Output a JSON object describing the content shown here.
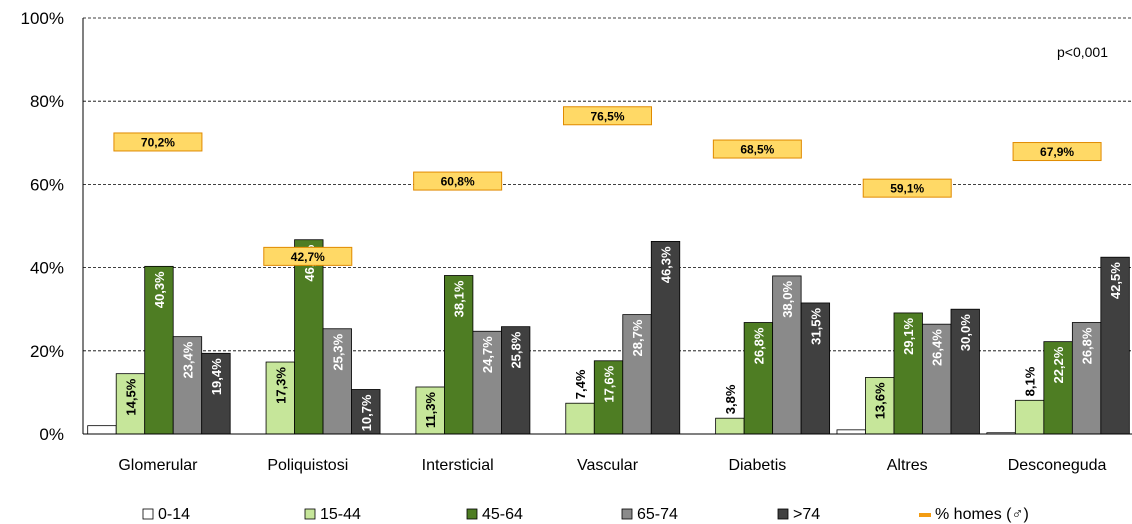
{
  "chart_data": {
    "type": "bar",
    "annotation": "p<0,001",
    "ylim": [
      0,
      100
    ],
    "y_ticks": [
      "0%",
      "20%",
      "40%",
      "60%",
      "80%",
      "100%"
    ],
    "categories": [
      "Glomerular",
      "Poliquistosi",
      "Intersticial",
      "Vascular",
      "Diabetis",
      "Altres",
      "Desconeguda"
    ],
    "series": [
      {
        "name": "0-14",
        "color": "#ffffff",
        "values": [
          2.0,
          0.0,
          0.0,
          0.0,
          0.0,
          1.0,
          0.3
        ],
        "labels": [
          "",
          "",
          "",
          "",
          "",
          "",
          ""
        ]
      },
      {
        "name": "15-44",
        "color": "#c6e69a",
        "values": [
          14.5,
          17.3,
          11.3,
          7.4,
          3.8,
          13.6,
          8.1
        ],
        "labels": [
          "14,5%",
          "17,3%",
          "11,3%",
          "7,4%",
          "3,8%",
          "13,6%",
          "8,1%"
        ]
      },
      {
        "name": "45-64",
        "color": "#4e7d23",
        "values": [
          40.3,
          46.7,
          38.1,
          17.6,
          26.8,
          29.1,
          22.2
        ],
        "labels": [
          "40,3%",
          "46,7%",
          "38,1%",
          "17,6%",
          "26,8%",
          "29,1%",
          "22,2%"
        ]
      },
      {
        "name": "65-74",
        "color": "#8a8a8a",
        "values": [
          23.4,
          25.3,
          24.7,
          28.7,
          38.0,
          26.4,
          26.8
        ],
        "labels": [
          "23,4%",
          "25,3%",
          "24,7%",
          "28,7%",
          "38,0%",
          "26,4%",
          "26,8%"
        ]
      },
      {
        "name": ">74",
        "color": "#404040",
        "values": [
          19.4,
          10.7,
          25.8,
          46.3,
          31.5,
          30.0,
          42.5
        ],
        "labels": [
          "19,4%",
          "10,7%",
          "25,8%",
          "46,3%",
          "31,5%",
          "30,0%",
          "42,5%"
        ]
      }
    ],
    "homes": {
      "name": "% homes (♂)",
      "color": "#ffd966",
      "values": [
        70.2,
        42.7,
        60.8,
        76.5,
        68.5,
        59.1,
        67.9
      ],
      "labels": [
        "70,2%",
        "42,7%",
        "60,8%",
        "76,5%",
        "68,5%",
        "59,1%",
        "67,9%"
      ]
    },
    "grid": true,
    "legend_position": "bottom"
  }
}
